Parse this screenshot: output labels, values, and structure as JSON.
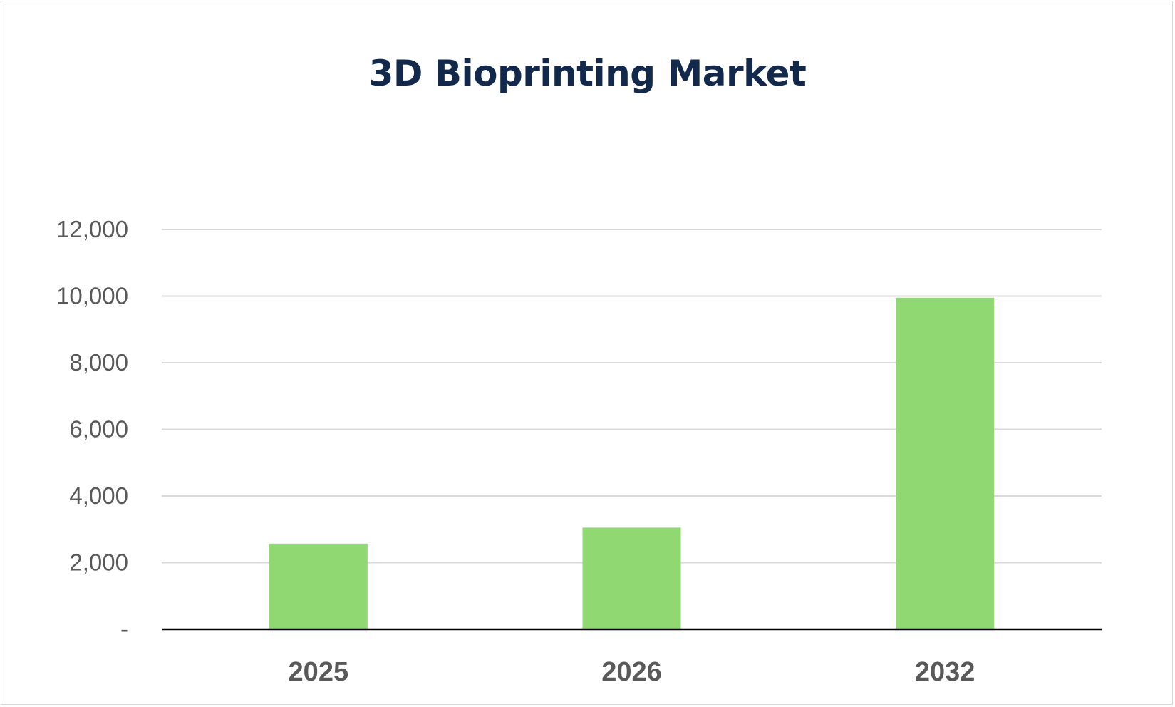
{
  "chart_data": {
    "type": "bar",
    "title": "3D Bioprinting Market",
    "categories": [
      "2025",
      "2026",
      "2032"
    ],
    "series": [
      {
        "values": [
          2570,
          3050,
          9950
        ]
      }
    ],
    "y_ticks": [
      "-",
      "2,000",
      "4,000",
      "6,000",
      "8,000",
      "10,000",
      "12,000"
    ],
    "y_tick_values": [
      0,
      2000,
      4000,
      6000,
      8000,
      10000,
      12000
    ],
    "ylim": [
      0,
      12000
    ],
    "xlabel": "",
    "ylabel": "",
    "grid": true,
    "legend": "none",
    "colors": {
      "bar": "#8fd872",
      "grid": "#d9d9d9",
      "axis": "#000000",
      "title": "#13294b",
      "tick_text": "#595959"
    }
  }
}
